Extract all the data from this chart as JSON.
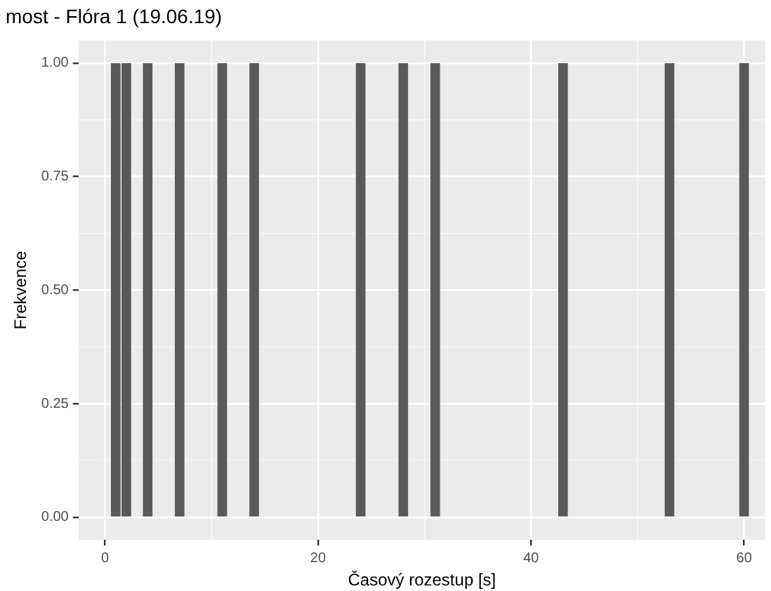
{
  "chart_data": {
    "type": "bar",
    "title": "most - Flóra 1 (19.06.19)",
    "xlabel": "Časový rozestup [s]",
    "ylabel": "Frekvence",
    "x": [
      1,
      2,
      4,
      7,
      11,
      14,
      24,
      28,
      31,
      43,
      53,
      60
    ],
    "values": [
      1,
      1,
      1,
      1,
      1,
      1,
      1,
      1,
      1,
      1,
      1,
      1
    ],
    "color": "#595959",
    "xlim": [
      -2.5,
      62
    ],
    "xticks": [
      0,
      20,
      40,
      60
    ],
    "ylim": [
      -0.05,
      1.05
    ],
    "yticks": [
      {
        "value": 0,
        "label": "0.00"
      },
      {
        "value": 0.25,
        "label": "0.25"
      },
      {
        "value": 0.5,
        "label": "0.50"
      },
      {
        "value": 0.75,
        "label": "0.75"
      },
      {
        "value": 1,
        "label": "1.00"
      }
    ],
    "grid": true,
    "legend": false
  }
}
